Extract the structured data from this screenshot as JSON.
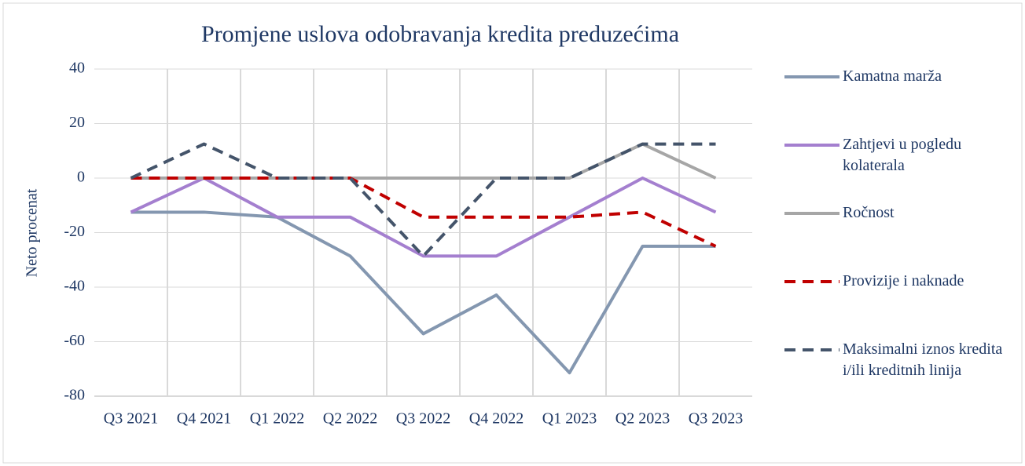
{
  "chart_data": {
    "type": "line",
    "title": "Promjene uslova odobravanja kredita preduzećima",
    "y_label": "Neto procenat",
    "categories": [
      "Q3 2021",
      "Q4 2021",
      "Q1 2022",
      "Q2 2022",
      "Q3 2022",
      "Q4 2022",
      "Q1 2023",
      "Q2 2023",
      "Q3 2023"
    ],
    "series": [
      {
        "name": "Kamatna marža",
        "color": "#8497b0",
        "dashed": false,
        "values": [
          -12.5,
          -12.5,
          -14.3,
          -28.6,
          -57.1,
          -42.9,
          -71.4,
          -25,
          -25
        ]
      },
      {
        "name": "Zahtjevi u pogledu kolaterala",
        "color": "#a47fcf",
        "dashed": false,
        "values": [
          -12.5,
          0,
          -14.3,
          -14.3,
          -28.6,
          -28.6,
          -14.3,
          0,
          -12.5
        ]
      },
      {
        "name": "Ročnost",
        "color": "#a6a6a6",
        "dashed": false,
        "values": [
          0,
          0,
          0,
          0,
          0,
          0,
          0,
          12.5,
          0
        ]
      },
      {
        "name": "Provizije i naknade",
        "color": "#c00000",
        "dashed": true,
        "values": [
          0,
          0,
          0,
          0,
          -14.3,
          -14.3,
          -14.3,
          -12.5,
          -25
        ]
      },
      {
        "name": "Maksimalni iznos kredita i/ili kreditnih linija",
        "color": "#44546a",
        "dashed": true,
        "values": [
          0,
          12.5,
          0,
          0,
          -28.6,
          0,
          0,
          12.5,
          12.5
        ]
      }
    ],
    "ylim": [
      -80,
      40
    ],
    "yticks": [
      -80,
      -60,
      -40,
      -20,
      0,
      20,
      40
    ],
    "grid": true,
    "legend": "right"
  }
}
